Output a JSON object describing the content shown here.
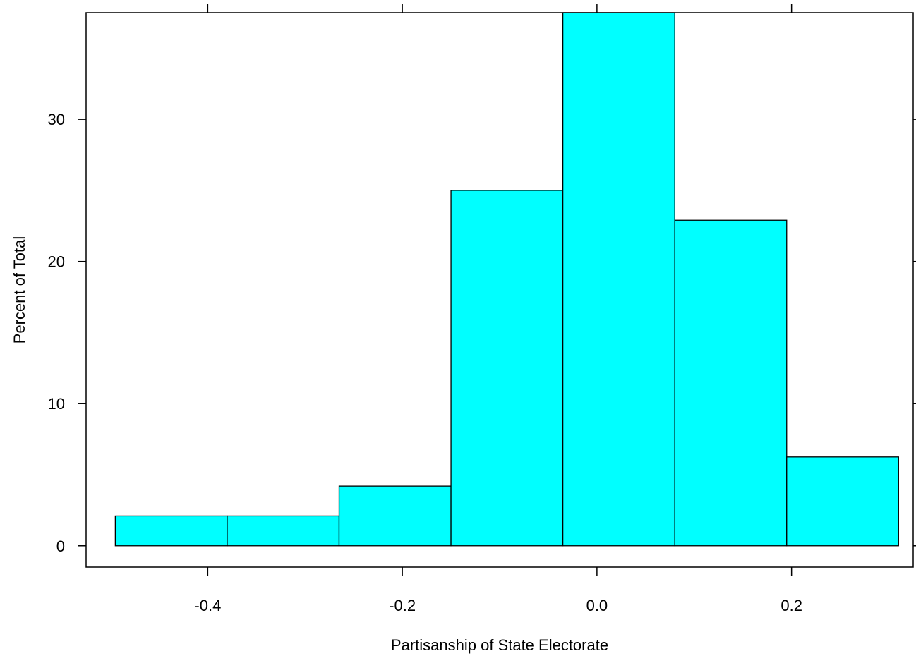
{
  "chart_data": {
    "type": "histogram",
    "title": "",
    "xlabel": "Partisanship of State Electorate",
    "ylabel": "Percent of Total",
    "xlim": [
      -0.525,
      0.325
    ],
    "ylim": [
      -1.5,
      37.5
    ],
    "x_ticks": [
      -0.4,
      -0.2,
      0.0,
      0.2
    ],
    "x_tick_labels": [
      "-0.4",
      "-0.2",
      "0.0",
      "0.2"
    ],
    "y_ticks": [
      0,
      10,
      20,
      30
    ],
    "y_tick_labels": [
      "0",
      "10",
      "20",
      "30"
    ],
    "grid": false,
    "legend": "none",
    "bar_color": "#00ffff",
    "bar_edge_color": "#000000",
    "bins": [
      {
        "x0": -0.495,
        "x1": -0.38,
        "value": 2.1
      },
      {
        "x0": -0.38,
        "x1": -0.265,
        "value": 2.1
      },
      {
        "x0": -0.265,
        "x1": -0.15,
        "value": 4.2
      },
      {
        "x0": -0.15,
        "x1": -0.035,
        "value": 25.0
      },
      {
        "x0": -0.035,
        "x1": 0.08,
        "value": 37.5
      },
      {
        "x0": 0.08,
        "x1": 0.195,
        "value": 22.9
      },
      {
        "x0": 0.195,
        "x1": 0.31,
        "value": 6.25
      }
    ]
  }
}
